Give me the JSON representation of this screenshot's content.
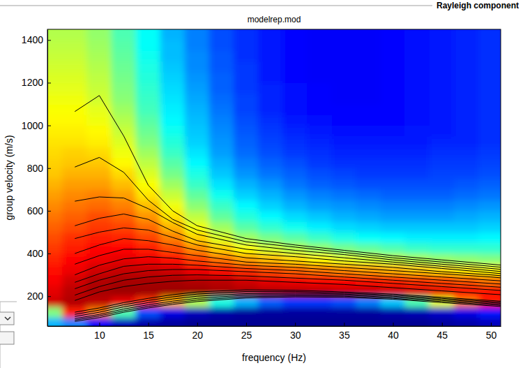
{
  "chart_data": {
    "type": "heatmap",
    "title": "modelrep.mod",
    "annotations": [
      "Rayleigh component"
    ],
    "x_label": "frequency (Hz)",
    "y_label": "group velocity (m/s)",
    "xlim": [
      4.7,
      51
    ],
    "ylim": [
      60,
      1450
    ],
    "xticks": [
      10,
      15,
      20,
      25,
      30,
      35,
      40,
      45,
      50
    ],
    "yticks": [
      200,
      400,
      600,
      800,
      1000,
      1200,
      1400
    ],
    "grid": false,
    "color": "#000000",
    "heatmap": {
      "zlim": [
        0,
        1
      ],
      "x": [
        5,
        7.5,
        10,
        12.5,
        15,
        17.5,
        20,
        22.5,
        25,
        27.5,
        30,
        32.5,
        35,
        37.5,
        40,
        42.5,
        45,
        47.5,
        50
      ],
      "y": [
        75,
        125,
        175,
        225,
        275,
        325,
        375,
        425,
        475,
        525,
        575,
        625,
        675,
        725,
        775,
        825,
        875,
        925,
        975,
        1025,
        1075,
        1125,
        1175,
        1225,
        1275,
        1325,
        1375,
        1425,
        1475
      ],
      "z": [
        [
          0.3,
          0.25,
          0.12,
          0.06,
          0.04,
          0.03,
          0.02,
          0.02,
          0.02,
          0.02,
          0.02,
          0.02,
          0.02,
          0.02,
          0.02,
          0.02,
          0.03,
          0.04,
          0.06
        ],
        [
          0.5,
          0.85,
          0.75,
          0.45,
          0.2,
          0.1,
          0.06,
          0.04,
          0.03,
          0.03,
          0.03,
          0.03,
          0.03,
          0.03,
          0.04,
          0.05,
          0.07,
          0.1,
          0.15
        ],
        [
          0.92,
          0.95,
          0.94,
          0.9,
          0.82,
          0.7,
          0.55,
          0.4,
          0.3,
          0.22,
          0.18,
          0.18,
          0.2,
          0.25,
          0.32,
          0.45,
          0.6,
          0.75,
          0.85
        ],
        [
          0.9,
          0.94,
          0.96,
          0.97,
          0.97,
          0.97,
          0.97,
          0.96,
          0.95,
          0.94,
          0.94,
          0.94,
          0.93,
          0.93,
          0.92,
          0.91,
          0.9,
          0.88,
          0.86
        ],
        [
          0.88,
          0.92,
          0.95,
          0.96,
          0.96,
          0.96,
          0.95,
          0.94,
          0.92,
          0.9,
          0.89,
          0.88,
          0.87,
          0.86,
          0.85,
          0.83,
          0.81,
          0.79,
          0.76
        ],
        [
          0.86,
          0.89,
          0.92,
          0.93,
          0.93,
          0.92,
          0.89,
          0.86,
          0.83,
          0.8,
          0.78,
          0.76,
          0.74,
          0.72,
          0.7,
          0.68,
          0.66,
          0.64,
          0.62
        ],
        [
          0.84,
          0.87,
          0.89,
          0.9,
          0.89,
          0.86,
          0.81,
          0.76,
          0.72,
          0.69,
          0.66,
          0.63,
          0.6,
          0.58,
          0.56,
          0.54,
          0.52,
          0.51,
          0.5
        ],
        [
          0.82,
          0.85,
          0.87,
          0.87,
          0.85,
          0.8,
          0.74,
          0.67,
          0.62,
          0.58,
          0.55,
          0.52,
          0.49,
          0.47,
          0.45,
          0.43,
          0.42,
          0.42,
          0.42
        ],
        [
          0.8,
          0.83,
          0.85,
          0.84,
          0.81,
          0.75,
          0.67,
          0.59,
          0.53,
          0.49,
          0.46,
          0.43,
          0.4,
          0.38,
          0.37,
          0.36,
          0.36,
          0.36,
          0.37
        ],
        [
          0.78,
          0.8,
          0.82,
          0.81,
          0.77,
          0.7,
          0.61,
          0.53,
          0.46,
          0.42,
          0.39,
          0.36,
          0.34,
          0.33,
          0.32,
          0.32,
          0.32,
          0.32,
          0.33
        ],
        [
          0.76,
          0.78,
          0.8,
          0.78,
          0.73,
          0.65,
          0.56,
          0.47,
          0.41,
          0.37,
          0.34,
          0.32,
          0.3,
          0.29,
          0.28,
          0.28,
          0.28,
          0.29,
          0.3
        ],
        [
          0.74,
          0.76,
          0.77,
          0.75,
          0.69,
          0.61,
          0.51,
          0.43,
          0.37,
          0.33,
          0.3,
          0.28,
          0.27,
          0.26,
          0.25,
          0.25,
          0.25,
          0.26,
          0.27
        ],
        [
          0.72,
          0.74,
          0.75,
          0.72,
          0.65,
          0.57,
          0.47,
          0.39,
          0.33,
          0.3,
          0.27,
          0.25,
          0.24,
          0.23,
          0.22,
          0.22,
          0.22,
          0.23,
          0.24
        ],
        [
          0.7,
          0.72,
          0.72,
          0.69,
          0.62,
          0.53,
          0.43,
          0.35,
          0.3,
          0.27,
          0.24,
          0.22,
          0.21,
          0.2,
          0.2,
          0.2,
          0.2,
          0.21,
          0.22
        ],
        [
          0.68,
          0.7,
          0.7,
          0.66,
          0.59,
          0.49,
          0.4,
          0.32,
          0.27,
          0.24,
          0.22,
          0.2,
          0.19,
          0.18,
          0.18,
          0.18,
          0.19,
          0.19,
          0.2
        ],
        [
          0.67,
          0.68,
          0.68,
          0.63,
          0.56,
          0.46,
          0.37,
          0.3,
          0.25,
          0.22,
          0.2,
          0.18,
          0.17,
          0.17,
          0.17,
          0.17,
          0.18,
          0.18,
          0.19
        ],
        [
          0.66,
          0.67,
          0.66,
          0.61,
          0.53,
          0.43,
          0.35,
          0.28,
          0.23,
          0.2,
          0.18,
          0.17,
          0.16,
          0.16,
          0.16,
          0.16,
          0.17,
          0.17,
          0.18
        ],
        [
          0.65,
          0.65,
          0.64,
          0.59,
          0.5,
          0.41,
          0.33,
          0.27,
          0.22,
          0.19,
          0.17,
          0.16,
          0.15,
          0.15,
          0.15,
          0.15,
          0.16,
          0.16,
          0.17
        ],
        [
          0.64,
          0.64,
          0.63,
          0.57,
          0.48,
          0.39,
          0.32,
          0.26,
          0.21,
          0.18,
          0.16,
          0.15,
          0.14,
          0.14,
          0.14,
          0.15,
          0.15,
          0.16,
          0.17
        ],
        [
          0.63,
          0.63,
          0.61,
          0.55,
          0.46,
          0.37,
          0.31,
          0.25,
          0.2,
          0.17,
          0.15,
          0.14,
          0.13,
          0.13,
          0.13,
          0.14,
          0.15,
          0.16,
          0.17
        ],
        [
          0.62,
          0.62,
          0.6,
          0.53,
          0.44,
          0.36,
          0.3,
          0.24,
          0.19,
          0.16,
          0.14,
          0.13,
          0.13,
          0.13,
          0.13,
          0.14,
          0.15,
          0.16,
          0.17
        ],
        [
          0.61,
          0.61,
          0.58,
          0.51,
          0.43,
          0.35,
          0.29,
          0.23,
          0.19,
          0.16,
          0.14,
          0.13,
          0.12,
          0.12,
          0.13,
          0.14,
          0.15,
          0.16,
          0.17
        ],
        [
          0.6,
          0.6,
          0.57,
          0.5,
          0.42,
          0.34,
          0.28,
          0.22,
          0.18,
          0.16,
          0.14,
          0.13,
          0.12,
          0.12,
          0.13,
          0.14,
          0.15,
          0.16,
          0.17
        ],
        [
          0.59,
          0.59,
          0.56,
          0.49,
          0.41,
          0.33,
          0.27,
          0.22,
          0.18,
          0.15,
          0.13,
          0.12,
          0.12,
          0.12,
          0.13,
          0.14,
          0.15,
          0.16,
          0.17
        ],
        [
          0.58,
          0.58,
          0.55,
          0.48,
          0.4,
          0.32,
          0.26,
          0.21,
          0.18,
          0.15,
          0.13,
          0.12,
          0.12,
          0.12,
          0.13,
          0.14,
          0.15,
          0.16,
          0.17
        ],
        [
          0.57,
          0.57,
          0.54,
          0.47,
          0.39,
          0.31,
          0.26,
          0.21,
          0.17,
          0.15,
          0.13,
          0.12,
          0.12,
          0.12,
          0.13,
          0.14,
          0.15,
          0.16,
          0.17
        ],
        [
          0.56,
          0.56,
          0.53,
          0.46,
          0.38,
          0.31,
          0.25,
          0.2,
          0.17,
          0.15,
          0.13,
          0.12,
          0.12,
          0.12,
          0.13,
          0.14,
          0.15,
          0.16,
          0.17
        ],
        [
          0.55,
          0.55,
          0.52,
          0.45,
          0.38,
          0.3,
          0.25,
          0.2,
          0.17,
          0.15,
          0.13,
          0.12,
          0.12,
          0.12,
          0.13,
          0.14,
          0.15,
          0.16,
          0.17
        ],
        [
          0.55,
          0.55,
          0.52,
          0.45,
          0.38,
          0.3,
          0.25,
          0.2,
          0.17,
          0.15,
          0.13,
          0.12,
          0.12,
          0.12,
          0.13,
          0.14,
          0.15,
          0.16,
          0.17
        ]
      ]
    },
    "x": [
      7.5,
      10,
      12.5,
      15,
      17.5,
      20,
      25,
      30,
      35,
      40,
      45,
      50,
      51
    ],
    "series": [
      {
        "type": "line",
        "values": [
          1065,
          1140,
          950,
          720,
          600,
          530,
          470,
          440,
          415,
          390,
          370,
          350,
          346
        ]
      },
      {
        "type": "line",
        "values": [
          805,
          850,
          780,
          650,
          560,
          510,
          455,
          430,
          405,
          380,
          360,
          340,
          336
        ]
      },
      {
        "type": "line",
        "values": [
          645,
          665,
          660,
          610,
          545,
          490,
          440,
          415,
          395,
          370,
          350,
          330,
          326
        ]
      },
      {
        "type": "line",
        "values": [
          530,
          565,
          585,
          560,
          505,
          460,
          420,
          400,
          380,
          360,
          340,
          320,
          316
        ]
      },
      {
        "type": "line",
        "values": [
          470,
          500,
          520,
          510,
          475,
          440,
          400,
          385,
          365,
          350,
          330,
          310,
          306
        ]
      },
      {
        "type": "line",
        "values": [
          400,
          440,
          470,
          460,
          440,
          415,
          380,
          365,
          350,
          335,
          315,
          300,
          296
        ]
      },
      {
        "type": "line",
        "values": [
          350,
          390,
          420,
          420,
          405,
          390,
          360,
          350,
          335,
          320,
          305,
          290,
          286
        ]
      },
      {
        "type": "line",
        "values": [
          300,
          345,
          375,
          385,
          378,
          365,
          345,
          335,
          320,
          305,
          290,
          275,
          272
        ]
      },
      {
        "type": "line",
        "values": [
          265,
          305,
          340,
          350,
          350,
          345,
          330,
          320,
          305,
          290,
          275,
          260,
          257
        ]
      },
      {
        "type": "line",
        "values": [
          235,
          275,
          305,
          320,
          325,
          325,
          315,
          305,
          290,
          275,
          260,
          245,
          242
        ]
      },
      {
        "type": "line",
        "values": [
          205,
          245,
          275,
          290,
          298,
          300,
          295,
          285,
          275,
          260,
          245,
          230,
          227
        ]
      },
      {
        "type": "line",
        "values": [
          180,
          220,
          245,
          260,
          270,
          275,
          275,
          265,
          255,
          240,
          225,
          210,
          207
        ]
      },
      {
        "type": "line",
        "values": [
          125,
          145,
          170,
          190,
          207,
          220,
          230,
          228,
          220,
          210,
          195,
          180,
          177
        ]
      },
      {
        "type": "line",
        "values": [
          115,
          135,
          160,
          180,
          197,
          210,
          222,
          222,
          215,
          205,
          190,
          175,
          172
        ]
      },
      {
        "type": "line",
        "values": [
          105,
          125,
          150,
          170,
          187,
          200,
          212,
          215,
          210,
          200,
          185,
          170,
          167
        ]
      },
      {
        "type": "line",
        "values": [
          95,
          115,
          140,
          160,
          177,
          190,
          205,
          208,
          205,
          195,
          180,
          165,
          162
        ]
      },
      {
        "type": "line",
        "values": [
          88,
          108,
          132,
          152,
          169,
          182,
          198,
          202,
          200,
          190,
          175,
          160,
          157
        ]
      },
      {
        "type": "line",
        "values": [
          82,
          100,
          125,
          145,
          162,
          175,
          192,
          197,
          195,
          186,
          170,
          155,
          152
        ]
      }
    ]
  }
}
